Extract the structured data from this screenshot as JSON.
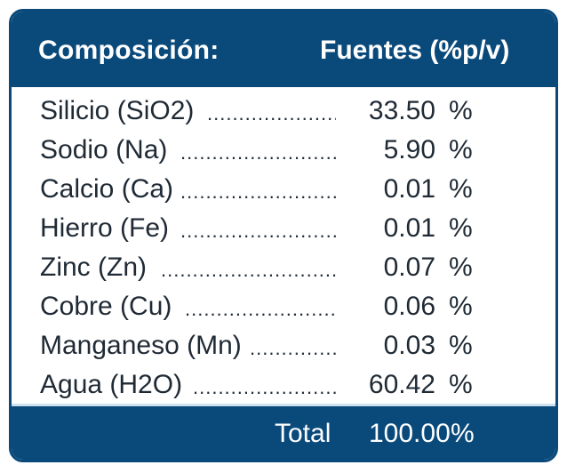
{
  "header": {
    "left": "Composición:",
    "right": "Fuentes (%p/v)"
  },
  "rows": [
    {
      "name": "Silicio (SiO2)",
      "value": "33.50",
      "unit": "%"
    },
    {
      "name": "Sodio (Na)",
      "value": "5.90",
      "unit": "%"
    },
    {
      "name": "Calcio (Ca)",
      "value": "0.01",
      "unit": "%"
    },
    {
      "name": "Hierro (Fe)",
      "value": "0.01",
      "unit": "%"
    },
    {
      "name": "Zinc (Zn)",
      "value": "0.07",
      "unit": "%"
    },
    {
      "name": "Cobre (Cu)",
      "value": "0.06",
      "unit": "%"
    },
    {
      "name": "Manganeso (Mn)",
      "value": "0.03",
      "unit": "%"
    },
    {
      "name": "Agua (H2O)",
      "value": "60.42",
      "unit": "%"
    }
  ],
  "footer": {
    "label": "Total",
    "value": "100.00",
    "unit": "%"
  },
  "colors": {
    "header_bg": "#0a4a7b",
    "text": "#1f2a35",
    "separator": "#cfe0ee"
  }
}
